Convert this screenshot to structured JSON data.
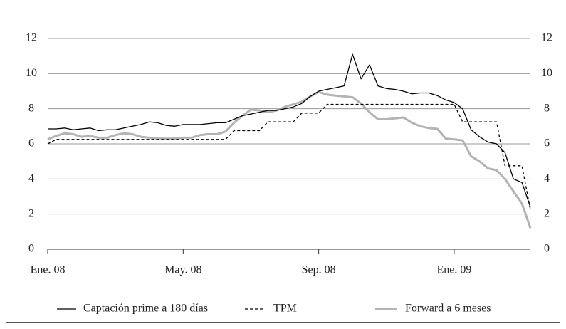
{
  "chart_data": {
    "type": "line",
    "categories": [
      "Ene. 08",
      null,
      null,
      null,
      null,
      null,
      null,
      null,
      null,
      null,
      null,
      null,
      null,
      null,
      null,
      null,
      "May. 08",
      null,
      null,
      null,
      null,
      null,
      null,
      null,
      null,
      null,
      null,
      null,
      null,
      null,
      null,
      null,
      "Sep. 08",
      null,
      null,
      null,
      null,
      null,
      null,
      null,
      null,
      null,
      null,
      null,
      null,
      null,
      null,
      null,
      "Ene. 09",
      null,
      null,
      null,
      null,
      null,
      null,
      null,
      null,
      null
    ],
    "series": [
      {
        "name": "Captación prime a 180 días",
        "color": "#000000",
        "style": "solid",
        "values": [
          6.85,
          6.85,
          6.9,
          6.8,
          6.85,
          6.9,
          6.75,
          6.8,
          6.8,
          6.9,
          7.0,
          7.1,
          7.25,
          7.2,
          7.05,
          7.0,
          7.1,
          7.1,
          7.1,
          7.15,
          7.2,
          7.2,
          7.4,
          7.6,
          7.7,
          7.8,
          7.9,
          7.9,
          8.0,
          8.1,
          8.3,
          8.7,
          9.0,
          9.1,
          9.2,
          9.3,
          11.1,
          9.7,
          10.5,
          9.3,
          9.15,
          9.1,
          9.0,
          8.85,
          8.9,
          8.9,
          8.75,
          8.5,
          8.35,
          8.0,
          6.8,
          6.4,
          6.1,
          6.0,
          5.5,
          4.0,
          3.8,
          2.4
        ]
      },
      {
        "name": "TPM",
        "color": "#000000",
        "style": "dashed",
        "values": [
          6.0,
          6.25,
          6.25,
          6.25,
          6.25,
          6.25,
          6.25,
          6.25,
          6.25,
          6.25,
          6.25,
          6.25,
          6.25,
          6.25,
          6.25,
          6.25,
          6.25,
          6.25,
          6.25,
          6.25,
          6.25,
          6.25,
          6.75,
          6.75,
          6.75,
          6.75,
          7.25,
          7.25,
          7.25,
          7.25,
          7.75,
          7.75,
          7.75,
          8.25,
          8.25,
          8.25,
          8.25,
          8.25,
          8.25,
          8.25,
          8.25,
          8.25,
          8.25,
          8.25,
          8.25,
          8.25,
          8.25,
          8.25,
          8.25,
          7.25,
          7.25,
          7.25,
          7.25,
          7.25,
          4.75,
          4.75,
          4.75,
          2.25
        ]
      },
      {
        "name": "Forward a 6 meses",
        "color": "#b3b3b3",
        "style": "thick",
        "values": [
          6.25,
          6.45,
          6.6,
          6.55,
          6.4,
          6.45,
          6.35,
          6.35,
          6.5,
          6.6,
          6.55,
          6.4,
          6.35,
          6.3,
          6.3,
          6.3,
          6.35,
          6.35,
          6.5,
          6.55,
          6.55,
          6.7,
          7.2,
          7.6,
          7.95,
          7.9,
          7.8,
          7.9,
          8.1,
          8.25,
          8.4,
          8.7,
          8.95,
          8.8,
          8.75,
          8.7,
          8.65,
          8.3,
          7.8,
          7.4,
          7.4,
          7.45,
          7.5,
          7.2,
          7.0,
          6.9,
          6.85,
          6.3,
          6.25,
          6.2,
          5.3,
          5.0,
          4.6,
          4.5,
          4.0,
          3.3,
          2.6,
          1.2
        ]
      }
    ],
    "ylim": [
      0,
      12
    ],
    "yticks": [
      0,
      2,
      4,
      6,
      8,
      10,
      12
    ],
    "y2lim": [
      0,
      12
    ],
    "y2ticks": [
      0,
      2,
      4,
      6,
      8,
      10,
      12
    ],
    "grid": true,
    "legend": "bottom"
  }
}
